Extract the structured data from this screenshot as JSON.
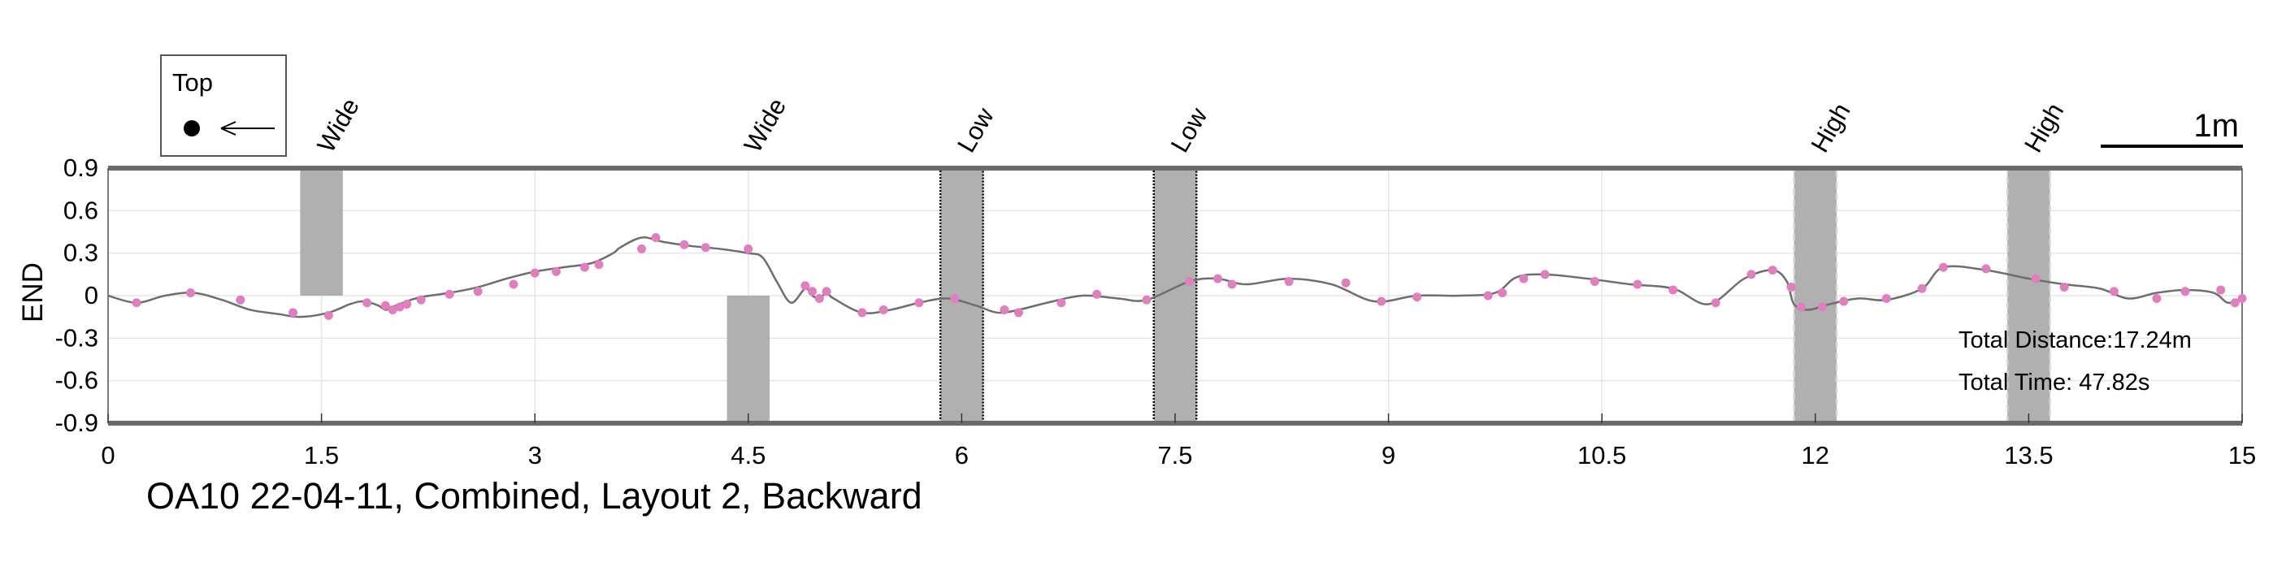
{
  "chart_data": {
    "type": "line",
    "title": "OA10 22-04-11, Combined, Layout 2, Backward",
    "xlabel": "",
    "ylabel": "END",
    "xlim": [
      0,
      15
    ],
    "ylim": [
      -0.9,
      0.9
    ],
    "x_ticks": [
      "0",
      "1.5",
      "3",
      "4.5",
      "6",
      "7.5",
      "9",
      "10.5",
      "12",
      "13.5",
      "15"
    ],
    "y_ticks": [
      "0.9",
      "0.6",
      "0.3",
      "0",
      "-0.3",
      "-0.6",
      "-0.9"
    ],
    "grid": true,
    "line_color": "#6e6e6e",
    "marker_color": "#e07fbd",
    "obstacle_color": "#b0b0b0",
    "obstacles": [
      {
        "label": "Wide",
        "x0": 1.35,
        "x1": 1.65,
        "y0": 0.0,
        "y1": 0.9,
        "style": "plain"
      },
      {
        "label": "Wide",
        "x0": 4.35,
        "x1": 4.65,
        "y0": -0.9,
        "y1": 0.0,
        "style": "plain"
      },
      {
        "label": "Low",
        "x0": 5.85,
        "x1": 6.15,
        "y0": -0.9,
        "y1": 0.9,
        "style": "dotted"
      },
      {
        "label": "Low",
        "x0": 7.35,
        "x1": 7.65,
        "y0": -0.9,
        "y1": 0.9,
        "style": "dotted"
      },
      {
        "label": "High",
        "x0": 11.85,
        "x1": 12.15,
        "y0": -0.9,
        "y1": 0.9,
        "style": "dashed"
      },
      {
        "label": "High",
        "x0": 13.35,
        "x1": 13.65,
        "y0": -0.9,
        "y1": 0.9,
        "style": "dashed"
      }
    ],
    "path": {
      "x": [
        0,
        0.2,
        0.4,
        0.6,
        0.8,
        1.0,
        1.2,
        1.35,
        1.55,
        1.7,
        1.8,
        1.9,
        1.95,
        2.0,
        2.05,
        2.1,
        2.2,
        2.4,
        2.6,
        2.8,
        3.0,
        3.2,
        3.4,
        3.55,
        3.6,
        3.75,
        3.9,
        4.1,
        4.3,
        4.5,
        4.6,
        4.7,
        4.8,
        4.9,
        4.95,
        5.0,
        5.05,
        5.1,
        5.3,
        5.5,
        5.7,
        5.9,
        6.1,
        6.25,
        6.4,
        6.6,
        6.85,
        7.1,
        7.3,
        7.6,
        7.8,
        8.0,
        8.3,
        8.6,
        8.9,
        9.2,
        9.5,
        9.75,
        9.9,
        10.1,
        10.4,
        10.7,
        11.0,
        11.25,
        11.5,
        11.7,
        11.8,
        11.85,
        11.95,
        12.1,
        12.3,
        12.5,
        12.75,
        12.9,
        13.2,
        13.5,
        13.75,
        14.0,
        14.2,
        14.4,
        14.6,
        14.8,
        14.9,
        15.0
      ],
      "y": [
        0.0,
        -0.05,
        0.0,
        0.02,
        -0.03,
        -0.1,
        -0.13,
        -0.15,
        -0.12,
        -0.06,
        -0.04,
        -0.07,
        -0.1,
        -0.08,
        -0.06,
        -0.04,
        -0.01,
        0.02,
        0.06,
        0.12,
        0.17,
        0.2,
        0.23,
        0.3,
        0.34,
        0.41,
        0.38,
        0.35,
        0.33,
        0.3,
        0.27,
        0.1,
        -0.05,
        0.05,
        0.0,
        -0.02,
        0.02,
        -0.02,
        -0.12,
        -0.1,
        -0.05,
        -0.02,
        -0.07,
        -0.12,
        -0.1,
        -0.05,
        0.0,
        -0.02,
        -0.03,
        0.1,
        0.12,
        0.08,
        0.12,
        0.08,
        -0.04,
        0.0,
        0.0,
        0.02,
        0.13,
        0.15,
        0.12,
        0.08,
        0.05,
        -0.06,
        0.12,
        0.18,
        0.1,
        -0.06,
        -0.1,
        -0.06,
        -0.02,
        -0.03,
        0.05,
        0.2,
        0.18,
        0.12,
        0.08,
        0.05,
        -0.02,
        0.02,
        0.04,
        0.02,
        -0.05,
        -0.02
      ]
    },
    "markers": {
      "x": [
        0.2,
        0.58,
        0.93,
        1.3,
        1.55,
        1.82,
        1.95,
        2.0,
        2.05,
        2.1,
        2.2,
        2.4,
        2.6,
        2.85,
        3.0,
        3.15,
        3.35,
        3.45,
        3.75,
        3.85,
        4.05,
        4.2,
        4.5,
        4.9,
        4.95,
        5.0,
        5.05,
        5.3,
        5.45,
        5.7,
        5.95,
        6.3,
        6.4,
        6.7,
        6.95,
        7.3,
        7.6,
        7.8,
        7.9,
        8.3,
        8.7,
        8.95,
        9.2,
        9.7,
        9.8,
        9.95,
        10.1,
        10.45,
        10.75,
        11.0,
        11.3,
        11.55,
        11.7,
        11.83,
        11.9,
        12.05,
        12.2,
        12.5,
        12.75,
        12.9,
        13.2,
        13.55,
        13.75,
        14.1,
        14.4,
        14.6,
        14.85,
        14.95,
        15.0
      ],
      "y": [
        -0.05,
        0.02,
        -0.03,
        -0.12,
        -0.14,
        -0.05,
        -0.07,
        -0.1,
        -0.08,
        -0.06,
        -0.03,
        0.01,
        0.03,
        0.08,
        0.16,
        0.17,
        0.2,
        0.22,
        0.33,
        0.41,
        0.36,
        0.34,
        0.33,
        0.07,
        0.03,
        -0.02,
        0.03,
        -0.12,
        -0.1,
        -0.05,
        -0.02,
        -0.1,
        -0.12,
        -0.05,
        0.01,
        -0.03,
        0.1,
        0.12,
        0.08,
        0.1,
        0.09,
        -0.04,
        -0.01,
        0.0,
        0.02,
        0.12,
        0.15,
        0.1,
        0.08,
        0.04,
        -0.05,
        0.15,
        0.18,
        0.06,
        -0.08,
        -0.08,
        -0.04,
        -0.02,
        0.05,
        0.2,
        0.19,
        0.12,
        0.06,
        0.03,
        -0.02,
        0.03,
        0.04,
        -0.05,
        -0.02
      ]
    }
  },
  "legend": {
    "title": "Top"
  },
  "scale_bar": {
    "label": "1m"
  },
  "stats": {
    "total_distance": "Total Distance:17.24m",
    "total_time": "Total Time: 47.82s"
  }
}
